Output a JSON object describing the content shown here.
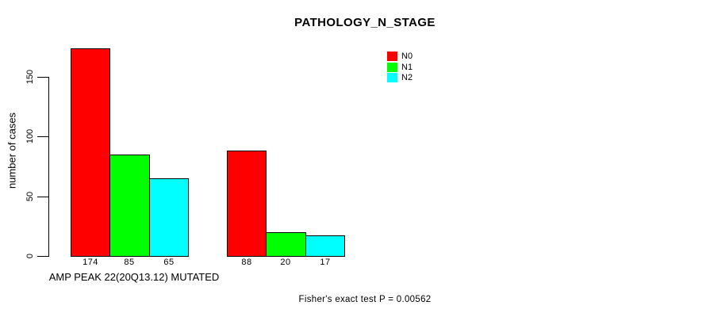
{
  "chart_data": {
    "type": "bar",
    "title": "PATHOLOGY_N_STAGE",
    "ylabel": "number of cases",
    "xlabel": "AMP PEAK 22(20Q13.12) MUTATED",
    "footer": "Fisher's exact test P = 0.00562",
    "yticks": [
      0,
      50,
      100,
      150
    ],
    "ylim": [
      0,
      174
    ],
    "grid": false,
    "legend_position": "top-right-inside",
    "series": [
      {
        "name": "N0",
        "color": "#ff0000",
        "values": [
          174,
          88
        ]
      },
      {
        "name": "N1",
        "color": "#00ff00",
        "values": [
          85,
          20
        ]
      },
      {
        "name": "N2",
        "color": "#00ffff",
        "values": [
          65,
          17
        ]
      }
    ],
    "groups": [
      {
        "label": "AMP PEAK 22(20Q13.12) MUTATED",
        "values": [
          174,
          85,
          65
        ]
      },
      {
        "label": "",
        "values": [
          88,
          20,
          17
        ]
      }
    ],
    "bar_value_labels": [
      174,
      85,
      65,
      88,
      20,
      17
    ]
  }
}
